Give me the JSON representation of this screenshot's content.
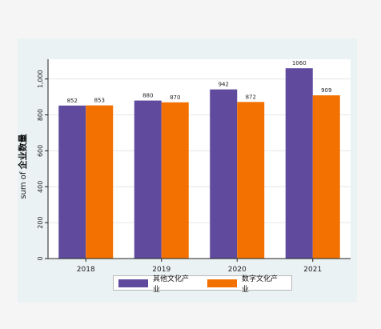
{
  "chart_data": {
    "type": "bar",
    "categories": [
      "2018",
      "2019",
      "2020",
      "2021"
    ],
    "series": [
      {
        "name": "其他文化产业",
        "values": [
          852,
          880,
          942,
          1060
        ],
        "color": "#5f4a9e"
      },
      {
        "name": "数字文化产业",
        "values": [
          853,
          870,
          872,
          909
        ],
        "color": "#f37100"
      }
    ],
    "ylabel_prefix": "sum of",
    "ylabel_main": "企业数量",
    "xlabel": "",
    "ylim": [
      0,
      1110
    ],
    "yticks": [
      0,
      200,
      400,
      600,
      800,
      1000
    ],
    "ytick_labels": [
      "0",
      "200",
      "400",
      "600",
      "800",
      "1,000"
    ],
    "grid": true,
    "legend_position": "bottom"
  }
}
